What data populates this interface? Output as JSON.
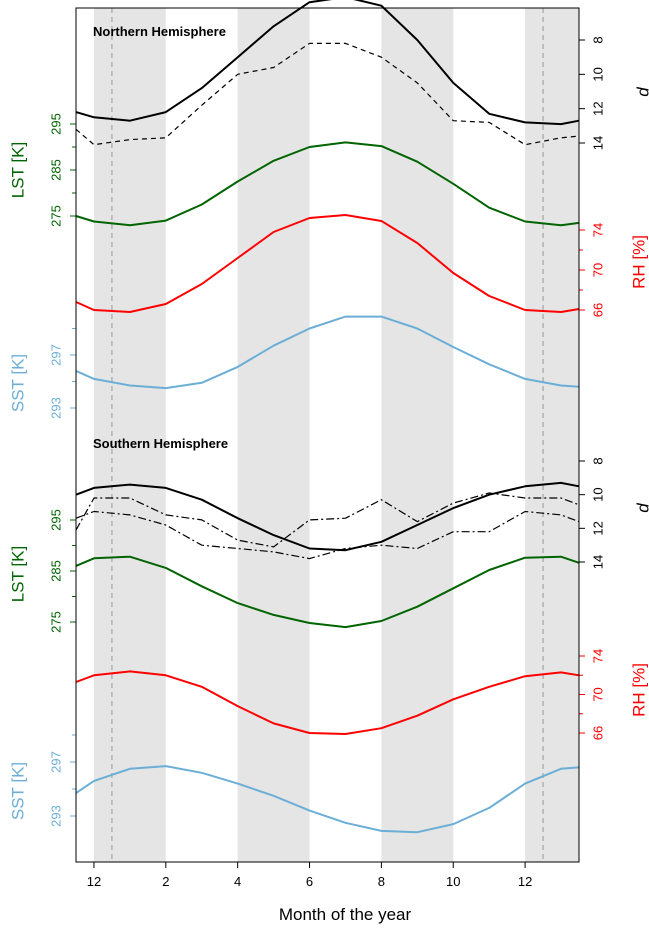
{
  "chart_data": {
    "type": "line",
    "xlabel": "Month of the year",
    "x": [
      -0.5,
      0,
      1,
      2,
      3,
      4,
      5,
      6,
      7,
      8,
      9,
      10,
      11,
      12,
      13,
      13.5
    ],
    "x_ticks": [
      {
        "value": 0,
        "label": "12"
      },
      {
        "value": 2,
        "label": "2"
      },
      {
        "value": 4,
        "label": "4"
      },
      {
        "value": 6,
        "label": "6"
      },
      {
        "value": 8,
        "label": "8"
      },
      {
        "value": 10,
        "label": "10"
      },
      {
        "value": 12,
        "label": "12"
      }
    ],
    "xlim": [
      -0.5,
      13.5
    ],
    "shaded_bands": [
      [
        0,
        2
      ],
      [
        4,
        6
      ],
      [
        8,
        10
      ],
      [
        12,
        13.5
      ]
    ],
    "vertical_dashed_lines": [
      0.5,
      12.5
    ],
    "colors": {
      "d": "#000000",
      "lst": "#006400",
      "rh": "#ff0000",
      "sst": "#6baed6",
      "band": "#e5e5e5",
      "dashed_vline": "#aaaaaa"
    },
    "axis_labels": {
      "d": "d",
      "lst": "LST [K]",
      "rh": "RH [%]",
      "sst": "SST [K]"
    },
    "panels": [
      {
        "title": "Northern Hemisphere",
        "d_ticks": [
          8,
          10,
          12,
          14
        ],
        "lst_ticks": [
          295,
          285,
          275
        ],
        "rh_ticks": [
          74,
          70,
          66
        ],
        "sst_ticks": [
          297,
          293
        ],
        "series": [
          {
            "key": "d_solid",
            "axis": "d",
            "style": "solid",
            "values": [
              12.2,
              12.5,
              12.7,
              12.2,
              10.8,
              9.0,
              7.2,
              5.8,
              5.5,
              6.0,
              8.0,
              10.5,
              12.3,
              12.8,
              12.9,
              12.7
            ]
          },
          {
            "key": "d_dashed",
            "axis": "d",
            "style": "dashed",
            "values": [
              13.2,
              14.1,
              13.8,
              13.7,
              11.8,
              10.0,
              9.6,
              8.2,
              8.2,
              9.0,
              10.5,
              12.7,
              12.8,
              14.1,
              13.7,
              13.6
            ]
          },
          {
            "key": "lst",
            "axis": "lst",
            "style": "solid",
            "values": [
              275.0,
              273.8,
              273.0,
              274.0,
              277.5,
              282.5,
              287.0,
              290.0,
              291.0,
              290.2,
              286.8,
              282.0,
              276.8,
              273.8,
              273.0,
              273.5
            ]
          },
          {
            "key": "rh",
            "axis": "rh",
            "style": "solid",
            "values": [
              66.8,
              66.0,
              65.8,
              66.6,
              68.6,
              71.2,
              73.8,
              75.2,
              75.5,
              74.9,
              72.7,
              69.7,
              67.4,
              66.0,
              65.8,
              66.1
            ]
          },
          {
            "key": "sst",
            "axis": "sst",
            "style": "solid",
            "values": [
              295.8,
              295.2,
              294.7,
              294.5,
              294.9,
              296.1,
              297.7,
              299.0,
              299.9,
              299.9,
              299.0,
              297.6,
              296.3,
              295.2,
              294.7,
              294.6
            ]
          }
        ]
      },
      {
        "title": "Southern Hemisphere",
        "d_ticks": [
          8,
          10,
          12,
          14
        ],
        "lst_ticks": [
          295,
          285,
          275
        ],
        "rh_ticks": [
          74,
          70,
          66
        ],
        "sst_ticks": [
          297,
          293
        ],
        "series": [
          {
            "key": "d_solid",
            "axis": "d",
            "style": "solid",
            "values": [
              10.0,
              9.6,
              9.4,
              9.6,
              10.3,
              11.4,
              12.4,
              13.2,
              13.3,
              12.8,
              11.8,
              10.8,
              10.0,
              9.5,
              9.3,
              9.5
            ]
          },
          {
            "key": "d_dashdot_upper",
            "axis": "d",
            "style": "dashdot",
            "values": [
              12.1,
              10.2,
              10.2,
              11.2,
              11.5,
              12.7,
              13.1,
              11.5,
              11.4,
              10.3,
              11.6,
              10.5,
              9.9,
              10.2,
              10.2,
              10.6
            ]
          },
          {
            "key": "d_dashdot_lower",
            "axis": "d",
            "style": "dashdot",
            "values": [
              11.4,
              11.0,
              11.2,
              11.8,
              13.0,
              13.2,
              13.4,
              13.8,
              13.2,
              13.0,
              13.2,
              12.2,
              12.2,
              11.0,
              11.2,
              11.6
            ]
          },
          {
            "key": "lst",
            "axis": "lst",
            "style": "solid",
            "values": [
              286.0,
              287.5,
              287.8,
              285.6,
              282.0,
              278.7,
              276.4,
              274.8,
              274.0,
              275.2,
              278.0,
              281.6,
              285.2,
              287.6,
              287.8,
              286.6
            ]
          },
          {
            "key": "rh",
            "axis": "rh",
            "style": "solid",
            "values": [
              71.3,
              72.0,
              72.4,
              72.0,
              70.8,
              68.8,
              67.0,
              66.0,
              65.9,
              66.5,
              67.8,
              69.5,
              70.8,
              71.9,
              72.3,
              72.0
            ]
          },
          {
            "key": "sst",
            "axis": "sst",
            "style": "solid",
            "values": [
              294.7,
              295.6,
              296.5,
              296.7,
              296.2,
              295.4,
              294.5,
              293.4,
              292.5,
              291.9,
              291.8,
              292.4,
              293.6,
              295.4,
              296.5,
              296.6
            ]
          }
        ]
      }
    ]
  }
}
